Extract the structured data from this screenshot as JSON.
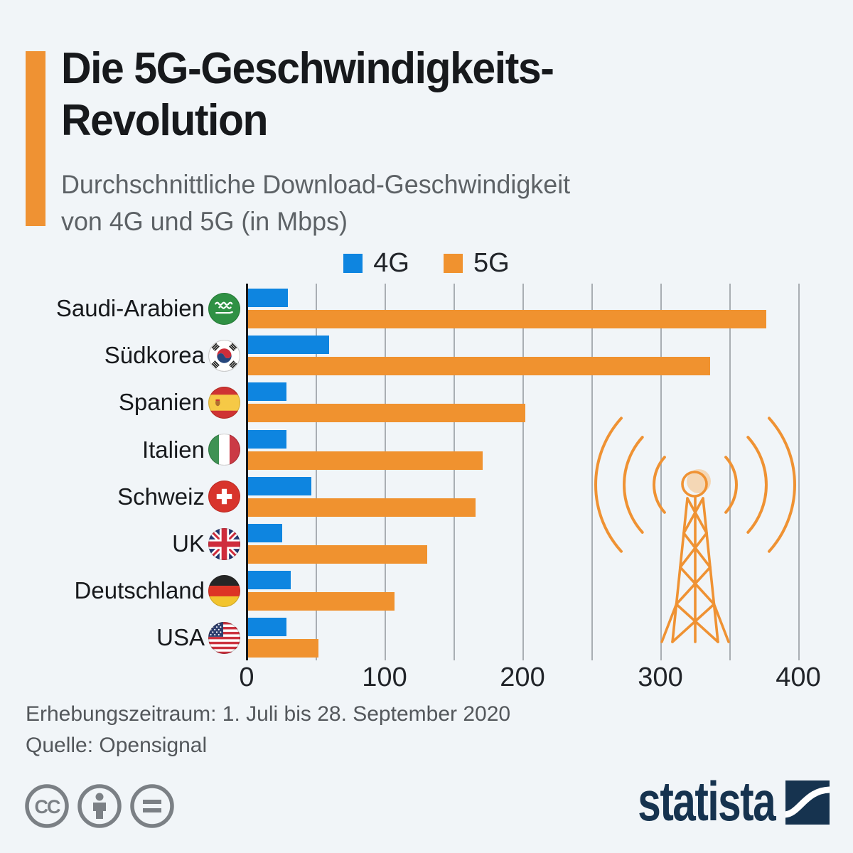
{
  "page": {
    "background": "#f1f5f8",
    "accent_color": "#ef9233"
  },
  "header": {
    "title_line1": "Die 5G-Geschwindigkeits-",
    "title_line2": "Revolution",
    "subtitle_line1": "Durchschnittliche Download-Geschwindigkeit",
    "subtitle_line2": "von 4G und 5G (in Mbps)"
  },
  "legend": {
    "items": [
      {
        "label": "4G",
        "color": "#0e85e0"
      },
      {
        "label": "5G",
        "color": "#f0922f"
      }
    ]
  },
  "chart_data": {
    "type": "bar",
    "orientation": "horizontal",
    "title": "Die 5G-Geschwindigkeits-Revolution",
    "subtitle": "Durchschnittliche Download-Geschwindigkeit von 4G und 5G (in Mbps)",
    "unit": "Mbps",
    "categories": [
      "Saudi-Arabien",
      "Südkorea",
      "Spanien",
      "Italien",
      "Schweiz",
      "UK",
      "Deutschland",
      "USA"
    ],
    "flags": [
      "sa",
      "kr",
      "es",
      "it",
      "ch",
      "gb",
      "de",
      "us"
    ],
    "series": [
      {
        "name": "4G",
        "color": "#0e85e0",
        "values": [
          30,
          60,
          29,
          29,
          47,
          26,
          32,
          29
        ]
      },
      {
        "name": "5G",
        "color": "#f0922f",
        "values": [
          377,
          336,
          202,
          171,
          166,
          131,
          107,
          52
        ]
      }
    ],
    "xlim": [
      0,
      400
    ],
    "xticks": [
      "0",
      "100",
      "200",
      "300",
      "400"
    ],
    "gridline_step": 50,
    "grid": true,
    "legend_position": "top"
  },
  "footer": {
    "line1": "Erhebungszeitraum: 1. Juli bis 28. September 2020",
    "line2": "Quelle: Opensignal"
  },
  "branding": {
    "logo_text": "statista",
    "license_icons": [
      "cc",
      "by",
      "nd"
    ]
  }
}
